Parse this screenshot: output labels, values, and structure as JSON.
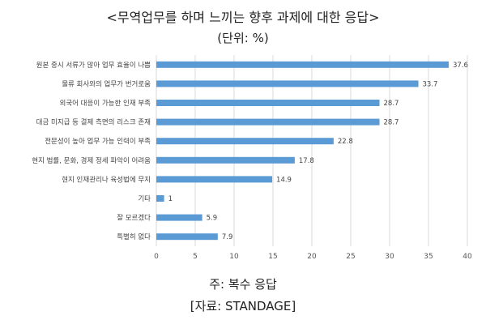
{
  "chart_data": {
    "type": "bar",
    "orientation": "horizontal",
    "title": "<무역업무를 하며 느끼는 향후 과제에 대한 응답>",
    "subtitle": "(단위: %)",
    "categories": [
      "원본 중시 서류가 많아 업무 효율이 나쁨",
      "물류 회사와의 업무가 번거로움",
      "외국어 대응이 가능한 인재 부족",
      "대금 미지급 등 결제 측면의 리스크 존재",
      "전문성이 높아 업무 가능 인력이 부족",
      "현지 법률, 문화, 경제 정세 파악이 어려움",
      "현지 인재관리나 육성법에 무지",
      "기타",
      "잘 모르겠다",
      "특별히 없다"
    ],
    "values": [
      37.6,
      33.7,
      28.7,
      28.7,
      22.8,
      17.8,
      14.9,
      1,
      5.9,
      7.9
    ],
    "xlim": [
      0,
      40
    ],
    "xticks": [
      0,
      5,
      10,
      15,
      20,
      25,
      30,
      35,
      40
    ],
    "grid": true,
    "bar_color": "#5b9bd5",
    "note": "주: 복수 응답",
    "source": "[자료: STANDAGE]"
  }
}
